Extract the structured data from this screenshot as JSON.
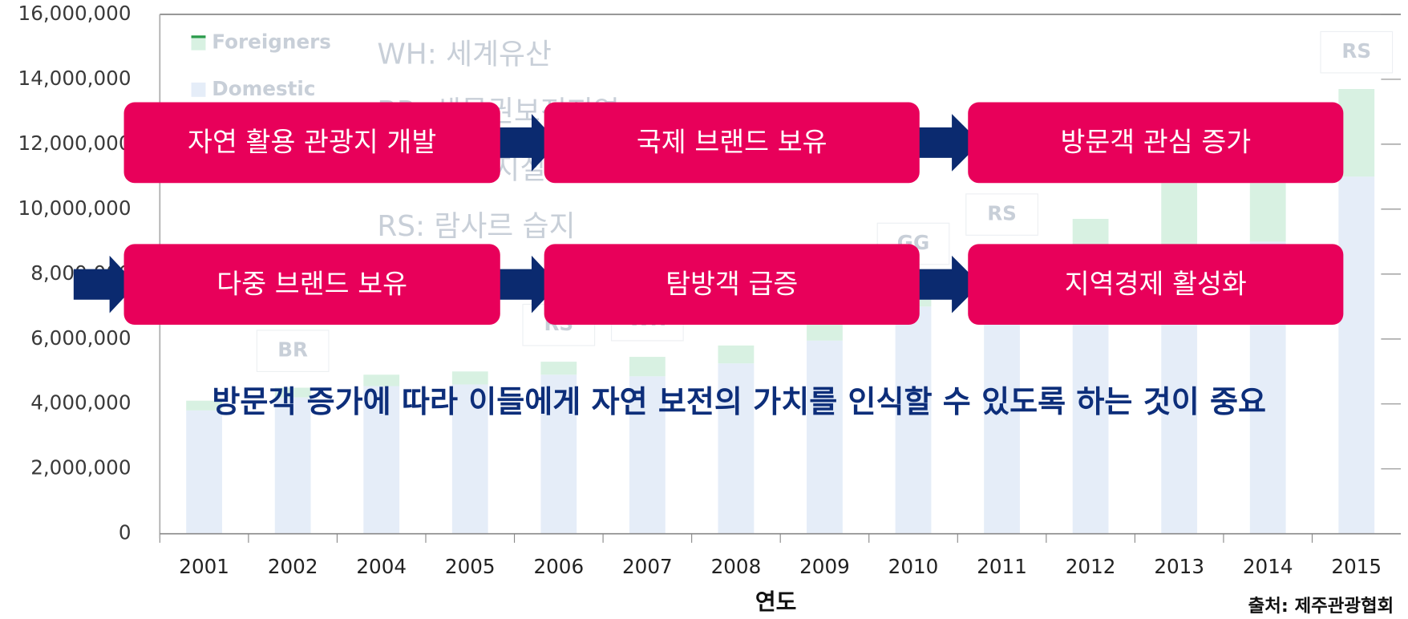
{
  "chart_data": {
    "type": "bar",
    "stacked": true,
    "categories": [
      "2001",
      "2002",
      "2004",
      "2005",
      "2006",
      "2007",
      "2008",
      "2009",
      "2010",
      "2011",
      "2012",
      "2013",
      "2014",
      "2015"
    ],
    "series": [
      {
        "name": "Domestic",
        "color": "#e5edf8",
        "values": [
          3800000,
          4200000,
          4550000,
          4600000,
          4900000,
          4850000,
          5250000,
          5950000,
          7000000,
          7600000,
          8000000,
          8500000,
          9000000,
          11000000
        ]
      },
      {
        "name": "Foreigners",
        "color": "#d8f1e2",
        "values": [
          300000,
          300000,
          350000,
          400000,
          400000,
          600000,
          550000,
          500000,
          800000,
          1100000,
          1700000,
          2300000,
          1800000,
          2700000
        ]
      }
    ],
    "legend_order": [
      "Foreigners",
      "Domestic"
    ],
    "ylim": [
      0,
      16000000
    ],
    "yticks": [
      0,
      {
        "value": 2000000,
        "label": "2,000,000"
      },
      {
        "value": 4000000,
        "label": "4,000,000"
      },
      {
        "value": 6000000,
        "label": "6,000,000"
      },
      {
        "value": 8000000,
        "label": "8,000,000"
      },
      {
        "value": 10000000,
        "label": "10,000,000"
      },
      {
        "value": 12000000,
        "label": "12,000,000"
      },
      {
        "value": 14000000,
        "label": "14,000,000"
      },
      {
        "value": 16000000,
        "label": "16,000,000"
      }
    ],
    "xlabel": "연도",
    "source": "출처: 제주관광협회",
    "annotations": [
      {
        "label": "BR",
        "x": "2002"
      },
      {
        "label": "RS",
        "x": "2006"
      },
      {
        "label": "WH",
        "x": "2007"
      },
      {
        "label": "GG",
        "x": "2010"
      },
      {
        "label": "RS",
        "x": "2011"
      },
      {
        "label": "RS",
        "x": "2015"
      }
    ],
    "abbreviations": [
      "WH: 세계유산",
      "BR: 생물권보전지역",
      "GG: 세계지질공원",
      "RS: 람사르 습지"
    ]
  },
  "diagram": {
    "rows": [
      [
        "자연 활용 관광지 개발",
        "국제 브랜드 보유",
        "방문객 관심 증가"
      ],
      [
        "다중 브랜드 보유",
        "탐방객 급증",
        "지역경제 활성화"
      ]
    ],
    "conclusion": "방문객 증가에 따라 이들에게 자연 보전의 가치를 인식할 수 있도록 하는 것이 중요"
  }
}
